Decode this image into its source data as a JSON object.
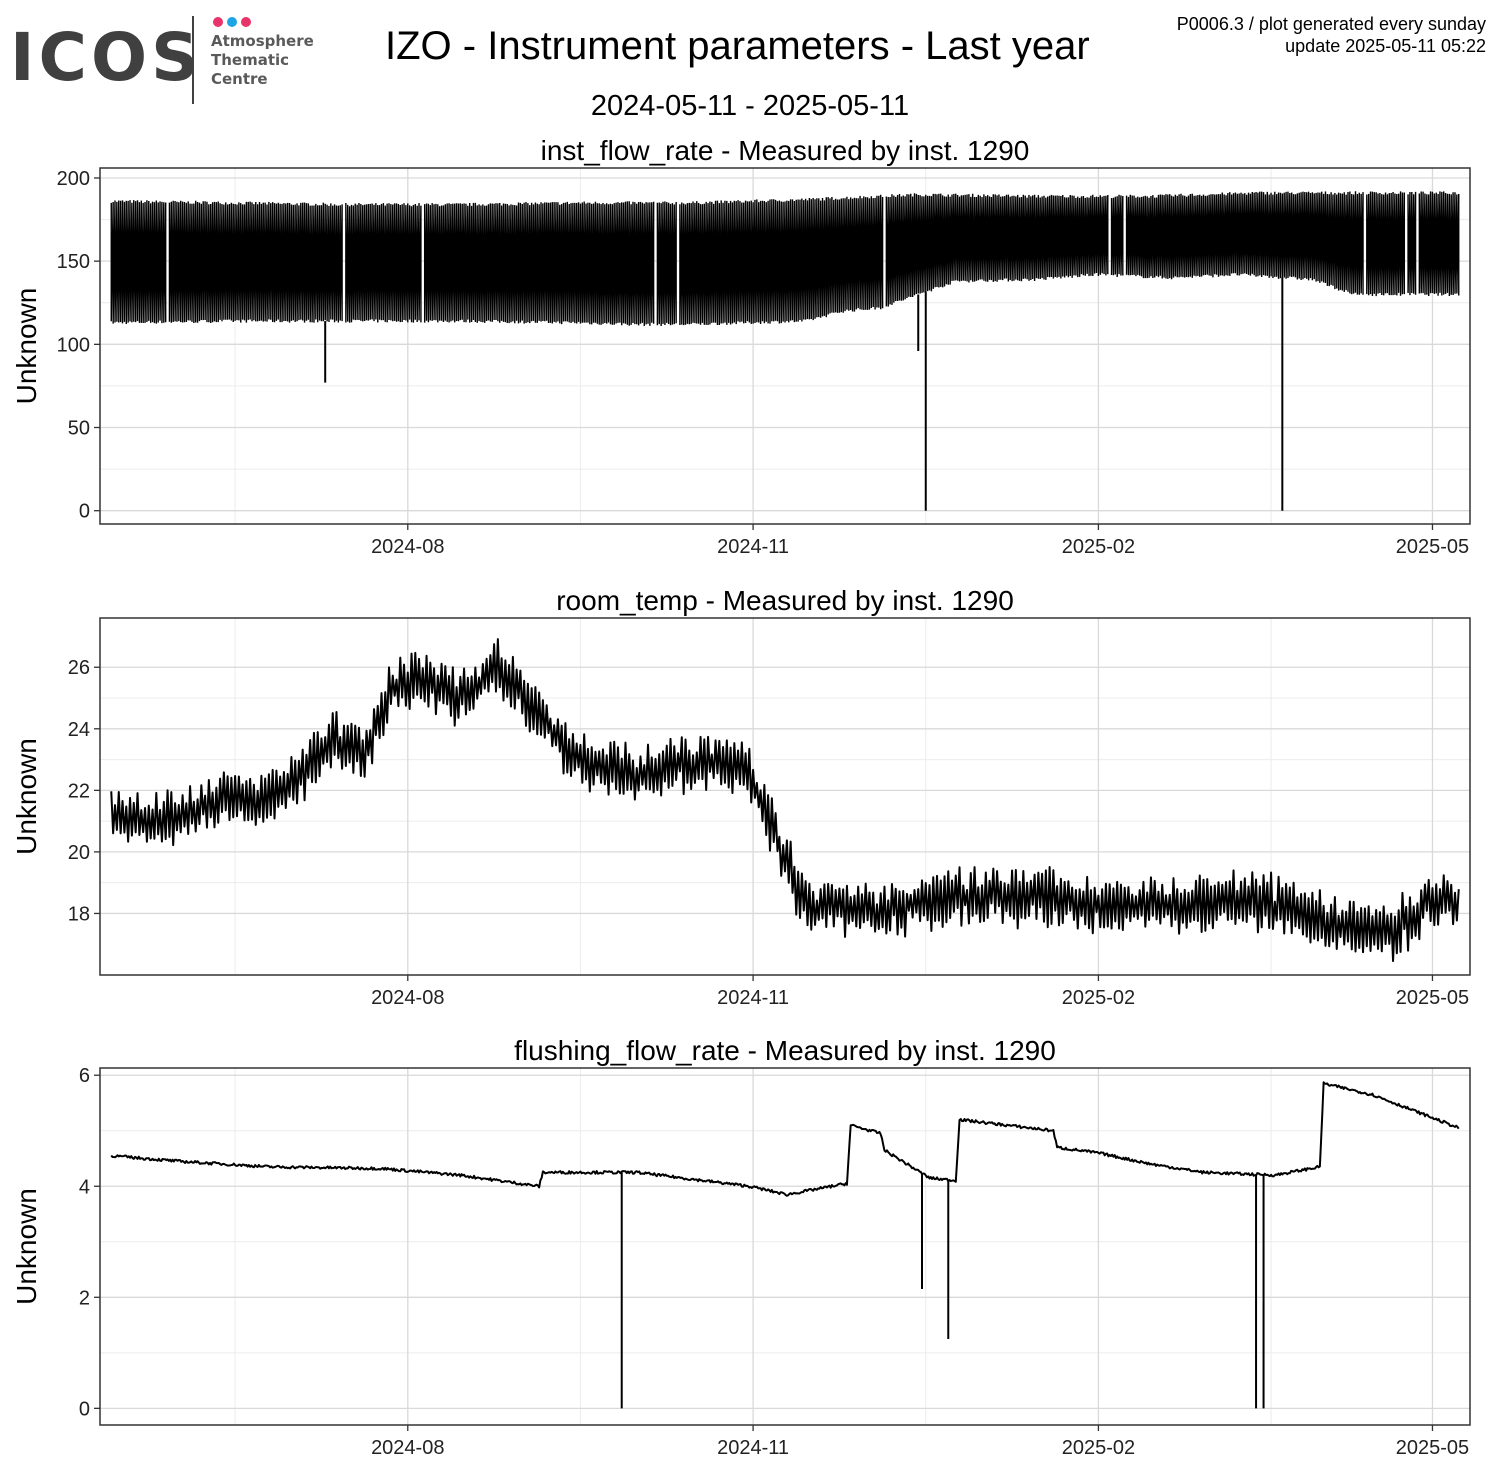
{
  "logo": {
    "wordmark": "ICOS",
    "lines": [
      "Atmosphere",
      "Thematic",
      "Centre"
    ],
    "dot_colors": [
      "#e8336b",
      "#1da4e5",
      "#e8336b"
    ],
    "text_color": "#404040"
  },
  "header": {
    "title": "IZO - Instrument parameters - Last year",
    "date_range": "2024-05-11 - 2025-05-11",
    "plot_id": "P0006.3 / plot generated every sunday",
    "update": "update  2025-05-11 05:22"
  },
  "chart_data": [
    {
      "type": "line",
      "title": "inst_flow_rate - Measured by inst. 1290",
      "xlabel": "",
      "ylabel": "Unknown",
      "xlim": [
        "2024-05-11",
        "2025-05-11"
      ],
      "x_ticks": [
        "2024-08",
        "2024-11",
        "2025-02",
        "2025-05"
      ],
      "ylim": [
        -8,
        206
      ],
      "y_ticks": [
        0,
        50,
        100,
        150,
        200
      ],
      "grid": true,
      "legend": "none",
      "style": "high-frequency oscillating band between lower and upper envelope",
      "line_color": "#000000",
      "series": [
        {
          "upper": {
            "x": [
              "2024-05-14",
              "2024-06-15",
              "2024-07-15",
              "2024-08-15",
              "2024-09-15",
              "2024-10-15",
              "2024-11-15",
              "2024-12-15",
              "2025-01-15",
              "2025-02-15",
              "2025-03-15",
              "2025-04-15",
              "2025-05-08"
            ],
            "y": [
              186,
              185,
              184,
              184,
              185,
              185,
              187,
              190,
              189,
              189,
              191,
              191,
              191
            ]
          },
          "lower": {
            "x": [
              "2024-05-14",
              "2024-06-15",
              "2024-07-15",
              "2024-08-15",
              "2024-09-15",
              "2024-10-01",
              "2024-10-15",
              "2024-11-15",
              "2024-11-25",
              "2024-12-05",
              "2024-12-25",
              "2025-01-15",
              "2025-02-01",
              "2025-02-20",
              "2025-03-10",
              "2025-03-30",
              "2025-04-10",
              "2025-05-08"
            ],
            "y": [
              113,
              114,
              114,
              114,
              113,
              112,
              112,
              114,
              120,
              122,
              138,
              139,
              142,
              140,
              142,
              139,
              130,
              130
            ]
          },
          "spikes": [
            {
              "x": "2024-07-10",
              "y": 77
            },
            {
              "x": "2024-12-15",
              "y": 96
            },
            {
              "x": "2024-12-17",
              "y": 0
            },
            {
              "x": "2025-03-22",
              "y": 0
            }
          ]
        }
      ]
    },
    {
      "type": "line",
      "title": "room_temp - Measured by inst. 1290",
      "xlabel": "",
      "ylabel": "Unknown",
      "xlim": [
        "2024-05-11",
        "2025-05-11"
      ],
      "x_ticks": [
        "2024-08",
        "2024-11",
        "2025-02",
        "2025-05"
      ],
      "ylim": [
        16.0,
        27.6
      ],
      "y_ticks": [
        18,
        20,
        22,
        24,
        26
      ],
      "grid": true,
      "legend": "none",
      "line_color": "#000000",
      "series": [
        {
          "amplitude": 0.6,
          "x": [
            "2024-05-14",
            "2024-05-25",
            "2024-06-10",
            "2024-06-25",
            "2024-07-05",
            "2024-07-12",
            "2024-07-20",
            "2024-07-28",
            "2024-08-05",
            "2024-08-15",
            "2024-08-25",
            "2024-09-05",
            "2024-09-15",
            "2024-10-01",
            "2024-10-15",
            "2024-10-30",
            "2024-11-08",
            "2024-11-15",
            "2024-12-01",
            "2024-12-20",
            "2025-01-15",
            "2025-02-01",
            "2025-02-20",
            "2025-03-15",
            "2025-04-01",
            "2025-04-20",
            "2025-05-01",
            "2025-05-08"
          ],
          "y": [
            21.2,
            21.0,
            21.5,
            21.8,
            22.6,
            23.6,
            23.3,
            25.2,
            25.6,
            25.0,
            26.0,
            24.5,
            23.0,
            22.5,
            23.0,
            22.8,
            20.2,
            18.3,
            18.1,
            18.4,
            18.6,
            18.2,
            18.3,
            18.4,
            17.9,
            17.3,
            18.5,
            18.3
          ]
        }
      ]
    },
    {
      "type": "line",
      "title": "flushing_flow_rate - Measured by inst. 1290",
      "xlabel": "",
      "ylabel": "Unknown",
      "xlim": [
        "2024-05-11",
        "2025-05-11"
      ],
      "x_ticks": [
        "2024-08",
        "2024-11",
        "2025-02",
        "2025-05"
      ],
      "ylim": [
        -0.3,
        6.13
      ],
      "y_ticks": [
        0,
        2,
        4,
        6
      ],
      "grid": true,
      "legend": "none",
      "line_color": "#000000",
      "series": [
        {
          "x": [
            "2024-05-14",
            "2024-06-01",
            "2024-06-25",
            "2024-07-25",
            "2024-08-15",
            "2024-09-05",
            "2024-09-06",
            "2024-10-01",
            "2024-10-31",
            "2024-11-10",
            "2024-11-26",
            "2024-11-27",
            "2024-12-05",
            "2024-12-06",
            "2024-12-18",
            "2024-12-25",
            "2024-12-26",
            "2025-01-20",
            "2025-01-21",
            "2025-02-01",
            "2025-02-15",
            "2025-03-01",
            "2025-03-20",
            "2025-04-01",
            "2025-04-02",
            "2025-04-15",
            "2025-05-08"
          ],
          "y": [
            4.55,
            4.45,
            4.35,
            4.32,
            4.2,
            4.0,
            4.25,
            4.25,
            4.0,
            3.85,
            4.05,
            5.1,
            4.95,
            4.65,
            4.15,
            4.1,
            5.2,
            5.0,
            4.7,
            4.6,
            4.4,
            4.25,
            4.2,
            4.35,
            5.85,
            5.65,
            5.05
          ]
        }
      ],
      "spikes": [
        {
          "x": "2024-09-27",
          "y": 0.0
        },
        {
          "x": "2024-12-16",
          "y": 2.15
        },
        {
          "x": "2024-12-23",
          "y": 1.25
        },
        {
          "x": "2025-03-15",
          "y": 0.0
        },
        {
          "x": "2025-03-17",
          "y": 0.0
        }
      ]
    }
  ]
}
